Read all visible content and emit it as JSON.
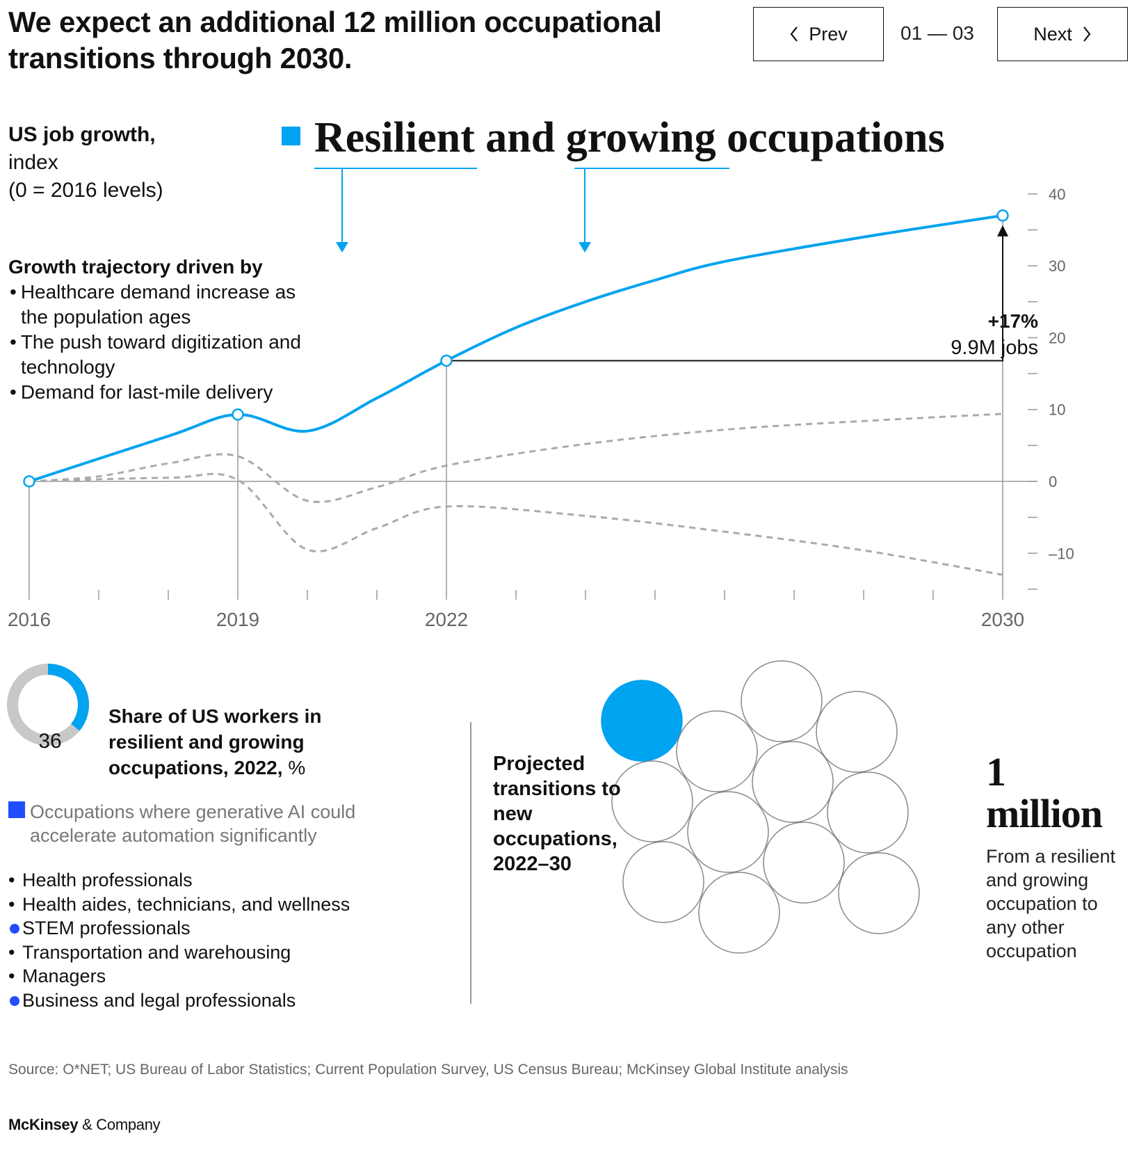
{
  "headline": "We expect an additional 12 million occupational transitions through 2030.",
  "nav": {
    "prev_label": "Prev",
    "next_label": "Next",
    "page_indicator": "01 — 03"
  },
  "chart_title": {
    "line1": "US job growth,",
    "line2": "index",
    "line3": "(0 = 2016 levels)"
  },
  "series_legend": "Resilient and growing occupations",
  "drivers": {
    "heading": "Growth trajectory driven by",
    "items": [
      "Healthcare demand increase as the population ages",
      "The push toward digitization and technology",
      "Demand for last-mile delivery"
    ]
  },
  "annotation": {
    "pct": "+17%",
    "jobs": "9.9M jobs"
  },
  "colors": {
    "accent": "#00a3ef",
    "dashed": "#aaaaaa",
    "legend_blue": "#1f4dff"
  },
  "chart_data": {
    "type": "line",
    "x_tick_labels": [
      "2016",
      "2019",
      "2022",
      "2030"
    ],
    "y_tick_labels": [
      "40",
      "30",
      "20",
      "10",
      "0",
      "–10"
    ],
    "xlim": [
      2016,
      2030
    ],
    "ylim": [
      -15,
      40
    ],
    "series": [
      {
        "name": "Resilient and growing occupations",
        "style": "solid",
        "x": [
          2016,
          2018,
          2019,
          2020,
          2021,
          2022,
          2023,
          2024,
          2025,
          2026,
          2028,
          2030
        ],
        "y": [
          0,
          6.3,
          9.3,
          7.0,
          11.6,
          16.8,
          21.4,
          25.0,
          28.0,
          30.6,
          34.0,
          37.0
        ],
        "markers": [
          [
            2016,
            0
          ],
          [
            2019,
            9.3
          ],
          [
            2022,
            16.8
          ],
          [
            2030,
            37.0
          ]
        ]
      },
      {
        "name": "",
        "style": "dashed",
        "x": [
          2016,
          2017,
          2018,
          2019,
          2020,
          2021,
          2022,
          2024,
          2026,
          2028,
          2030
        ],
        "y": [
          0,
          0.7,
          2.5,
          3.5,
          -2.7,
          -0.8,
          2.2,
          5.2,
          7.2,
          8.4,
          9.4
        ]
      },
      {
        "name": "",
        "style": "dashed",
        "x": [
          2016,
          2018,
          2019,
          2020,
          2021,
          2022,
          2024,
          2026,
          2028,
          2030
        ],
        "y": [
          0,
          0.5,
          0.2,
          -9.5,
          -6.5,
          -3.5,
          -4.8,
          -7.0,
          -9.6,
          -13.0
        ]
      }
    ]
  },
  "share": {
    "value": 36,
    "value_label": "36",
    "title": "Share of US workers in resilient and growing occupations, 2022,",
    "unit": "%"
  },
  "legend_note": "Occupations where generative AI could accelerate automation significantly",
  "occupations": [
    {
      "label": "Health professionals",
      "ai_accelerated": false
    },
    {
      "label": "Health aides, technicians, and wellness",
      "ai_accelerated": false
    },
    {
      "label": "STEM professionals",
      "ai_accelerated": true
    },
    {
      "label": "Transportation and warehousing",
      "ai_accelerated": false
    },
    {
      "label": "Managers",
      "ai_accelerated": false
    },
    {
      "label": "Business and legal professionals",
      "ai_accelerated": true
    }
  ],
  "transitions": {
    "title": "Projected transitions to new occupations, 2022–30",
    "circles_total": 12,
    "circles_highlighted": 1,
    "big_number_line1": "1",
    "big_number_line2": "million",
    "description": "From a resilient and growing occupation to any other occupation"
  },
  "source": "Source: O*NET; US Bureau of Labor Statistics; Current Population Survey, US Census Bureau; McKinsey Global Institute analysis",
  "logo": {
    "bold": "McKinsey",
    "rest": " & Company"
  }
}
